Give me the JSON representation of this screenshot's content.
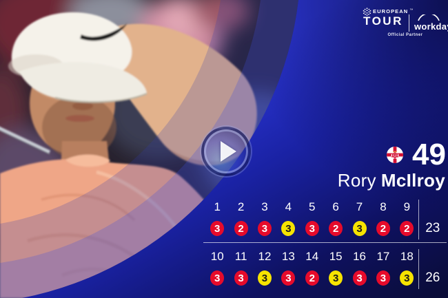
{
  "branding": {
    "tour_logo": {
      "top": "EUROPEAN",
      "tm": "™",
      "bottom": "TOUR"
    },
    "partner_logo": {
      "name": "workday",
      "caption": "Official Partner"
    }
  },
  "player": {
    "first_name": "Rory",
    "last_name": "McIlroy",
    "total_score": "49",
    "flag": "northern-ireland"
  },
  "scorecard": {
    "nines": [
      {
        "name": "front-nine",
        "holes": [
          "1",
          "2",
          "3",
          "4",
          "5",
          "6",
          "7",
          "8",
          "9"
        ],
        "scores": [
          {
            "v": "3",
            "c": "red"
          },
          {
            "v": "2",
            "c": "red"
          },
          {
            "v": "3",
            "c": "red"
          },
          {
            "v": "3",
            "c": "yellow"
          },
          {
            "v": "3",
            "c": "red"
          },
          {
            "v": "2",
            "c": "red"
          },
          {
            "v": "3",
            "c": "yellow"
          },
          {
            "v": "2",
            "c": "red"
          },
          {
            "v": "2",
            "c": "red"
          }
        ],
        "total": "23"
      },
      {
        "name": "back-nine",
        "holes": [
          "10",
          "11",
          "12",
          "13",
          "14",
          "15",
          "16",
          "17",
          "18"
        ],
        "scores": [
          {
            "v": "3",
            "c": "red"
          },
          {
            "v": "3",
            "c": "red"
          },
          {
            "v": "3",
            "c": "yellow"
          },
          {
            "v": "3",
            "c": "red"
          },
          {
            "v": "2",
            "c": "red"
          },
          {
            "v": "3",
            "c": "yellow"
          },
          {
            "v": "3",
            "c": "red"
          },
          {
            "v": "3",
            "c": "red"
          },
          {
            "v": "3",
            "c": "yellow"
          }
        ],
        "total": "26"
      }
    ]
  },
  "colors": {
    "score_red": "#e60b2b",
    "score_yellow": "#f6e300",
    "score_text_on_red": "#ffffff",
    "score_text_on_yellow": "#1a1a1a",
    "panel_bright": "#2d38da",
    "panel_dark": "#0a0c38",
    "line": "rgba(255,255,255,0.65)"
  },
  "icons": {
    "play": "play-icon",
    "flag": "northern-ireland-flag-icon",
    "golf_ball": "golf-ball-icon",
    "nike_swoosh": "nike-swoosh-icon",
    "workday_arc": "workday-arc-icon"
  }
}
